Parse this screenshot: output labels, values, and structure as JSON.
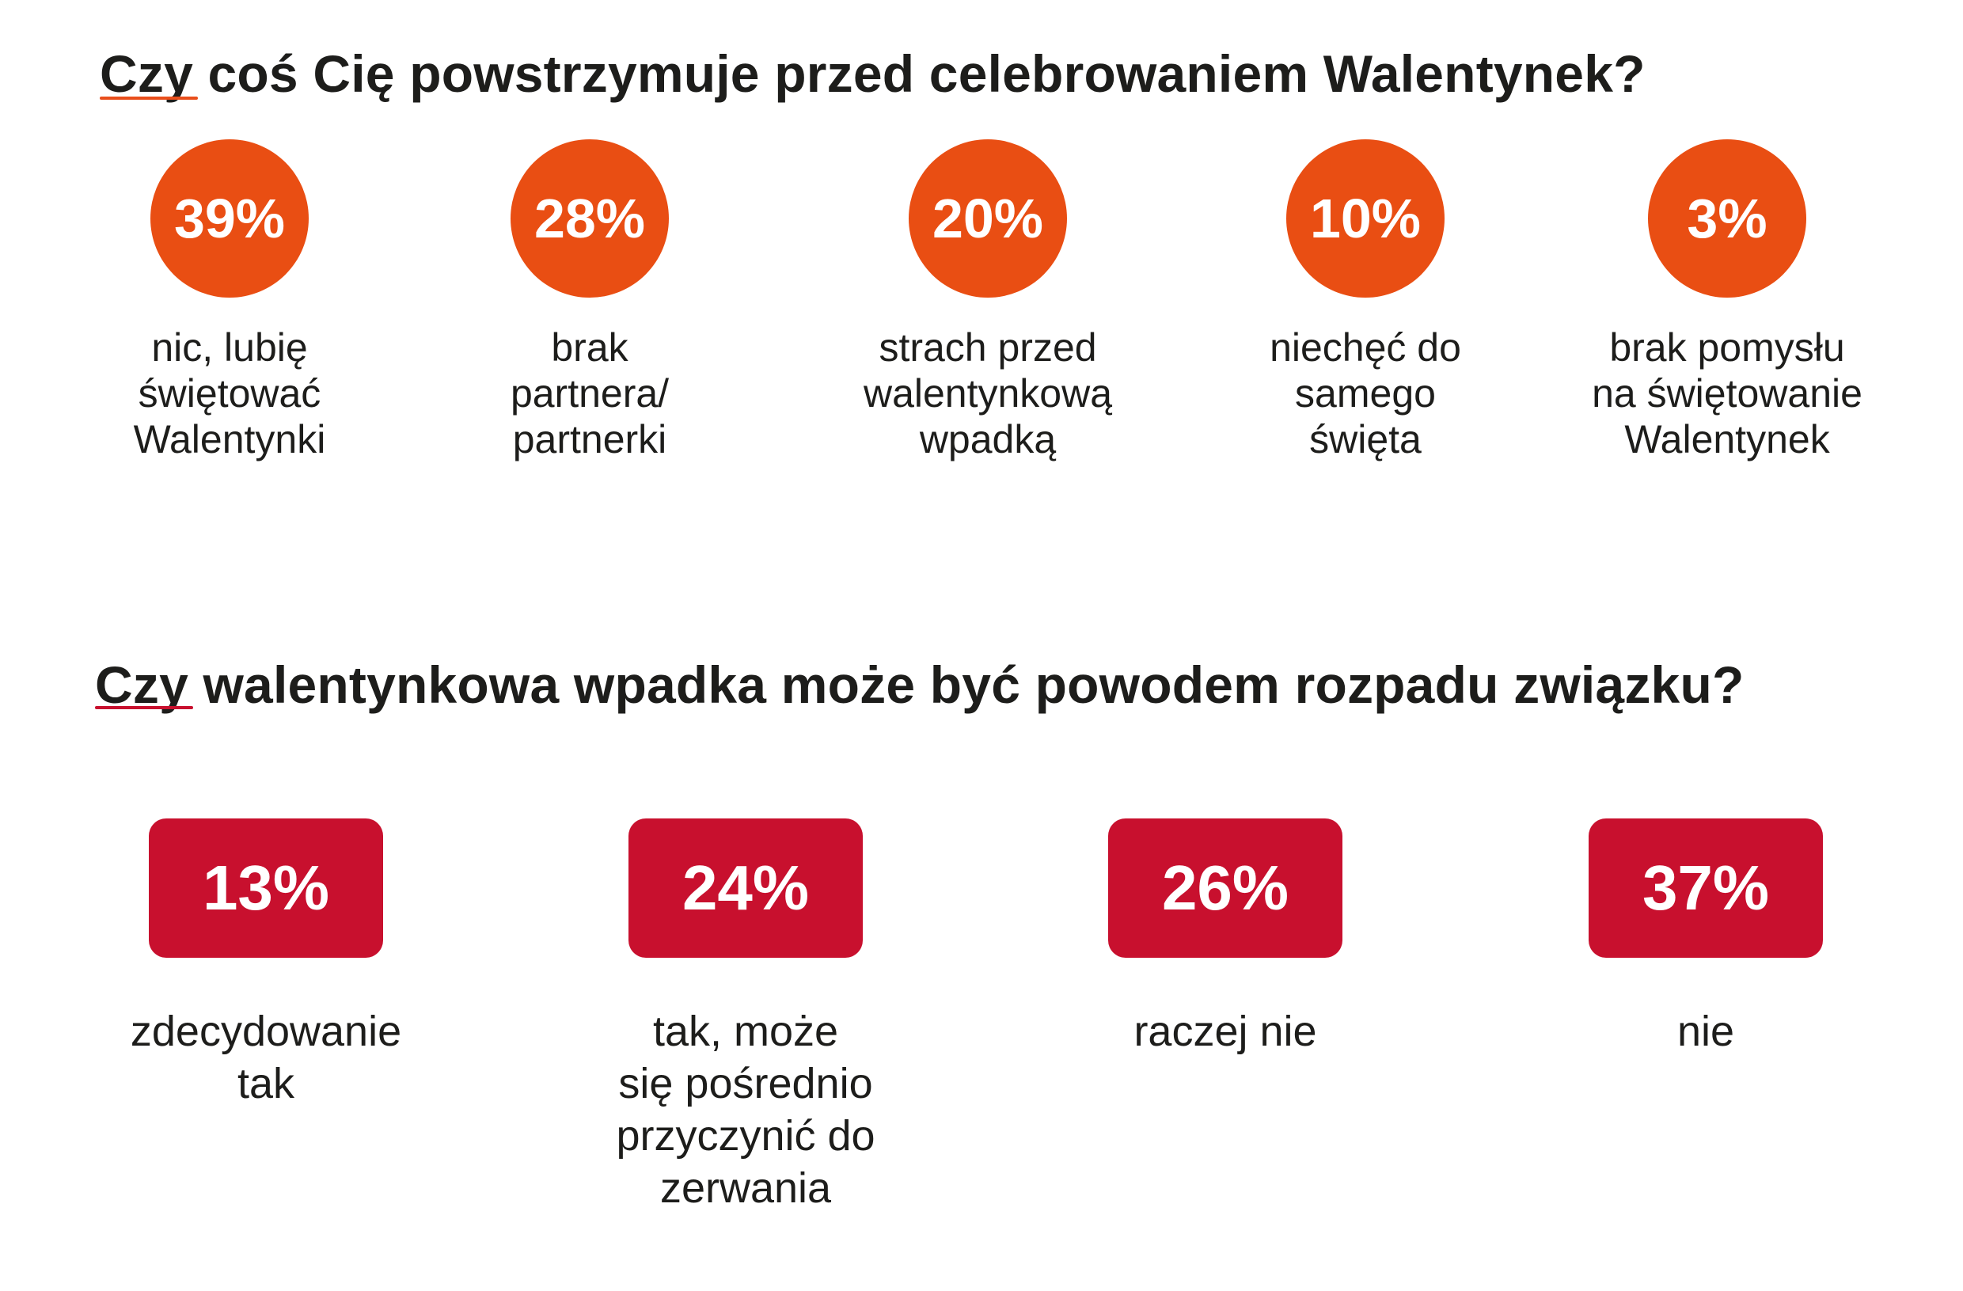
{
  "colors": {
    "circle_fill": "#e94e13",
    "box_fill": "#c8102e",
    "text": "#1d1d1b"
  },
  "chart_data": [
    {
      "type": "table",
      "title": "Czy coś Cię powstrzymuje przed celebrowaniem Walentynek?",
      "categories": [
        "nic, lubię\nświętować\nWalentynki",
        "brak\npartnera/\npartnerki",
        "strach przed\nwalentynkową\nwpadką",
        "niechęć do\nsamego\nświęta",
        "brak pomysłu\nna świętowanie\nWalentynek"
      ],
      "values": [
        39,
        28,
        20,
        10,
        3
      ],
      "value_labels": [
        "39%",
        "28%",
        "20%",
        "10%",
        "3%"
      ],
      "unit": "%"
    },
    {
      "type": "table",
      "title": "Czy walentynkowa wpadka może być powodem rozpadu związku?",
      "categories": [
        "zdecydowanie\ntak",
        "tak, może\nsię pośrednio\nprzyczynić do\nzerwania",
        "raczej nie",
        "nie"
      ],
      "values": [
        13,
        24,
        26,
        37
      ],
      "value_labels": [
        "13%",
        "24%",
        "26%",
        "37%"
      ],
      "unit": "%"
    }
  ]
}
